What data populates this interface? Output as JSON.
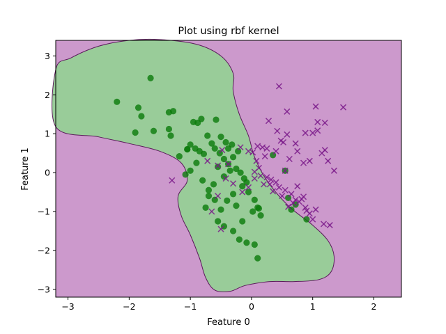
{
  "chart_data": {
    "type": "scatter",
    "title": "Plot using rbf kernel",
    "xlabel": "Feature 0",
    "ylabel": "Feature 1",
    "xlim": [
      -3.2,
      2.45
    ],
    "ylim": [
      -3.2,
      3.4
    ],
    "xticks": [
      -3,
      -2,
      -1,
      0,
      1,
      2
    ],
    "yticks": [
      -3,
      -2,
      -1,
      0,
      1,
      2,
      3
    ],
    "grid": false,
    "legend": "none",
    "background_region_color": "#cc99cc",
    "decision_region_color": "#99cc99",
    "decision_region_outline": [
      [
        -3.2,
        2.65
      ],
      [
        -2.95,
        2.95
      ],
      [
        -2.5,
        3.25
      ],
      [
        -2.0,
        3.4
      ],
      [
        -1.5,
        3.42
      ],
      [
        -0.9,
        3.3
      ],
      [
        -0.5,
        3.0
      ],
      [
        -0.3,
        2.55
      ],
      [
        -0.3,
        2.1
      ],
      [
        -0.2,
        1.5
      ],
      [
        -0.05,
        0.95
      ],
      [
        0.05,
        0.4
      ],
      [
        0.25,
        -0.2
      ],
      [
        0.6,
        -0.85
      ],
      [
        1.0,
        -1.35
      ],
      [
        1.25,
        -1.75
      ],
      [
        1.35,
        -2.15
      ],
      [
        1.3,
        -2.55
      ],
      [
        1.1,
        -2.75
      ],
      [
        0.7,
        -2.8
      ],
      [
        0.3,
        -2.8
      ],
      [
        -0.1,
        -2.9
      ],
      [
        -0.35,
        -3.05
      ],
      [
        -0.6,
        -3.02
      ],
      [
        -0.75,
        -2.7
      ],
      [
        -0.85,
        -2.2
      ],
      [
        -1.0,
        -1.6
      ],
      [
        -1.15,
        -1.1
      ],
      [
        -1.2,
        -0.6
      ],
      [
        -1.05,
        -0.2
      ],
      [
        -1.15,
        0.25
      ],
      [
        -1.5,
        0.55
      ],
      [
        -2.0,
        0.75
      ],
      [
        -2.5,
        0.92
      ],
      [
        -3.2,
        1.18
      ]
    ],
    "series": [
      {
        "marker": "circle",
        "color": "#0a7a0a",
        "points": [
          [
            -2.2,
            1.82
          ],
          [
            -1.85,
            1.67
          ],
          [
            -1.65,
            2.43
          ],
          [
            -1.8,
            1.45
          ],
          [
            -1.9,
            1.03
          ],
          [
            -1.6,
            1.07
          ],
          [
            -1.35,
            1.55
          ],
          [
            -1.28,
            1.58
          ],
          [
            -1.35,
            1.12
          ],
          [
            -1.32,
            0.95
          ],
          [
            -1.18,
            0.42
          ],
          [
            -1.05,
            0.6
          ],
          [
            -1.0,
            0.72
          ],
          [
            -0.92,
            0.62
          ],
          [
            -0.85,
            0.55
          ],
          [
            -0.78,
            0.48
          ],
          [
            -0.72,
            0.95
          ],
          [
            -0.65,
            0.75
          ],
          [
            -0.6,
            0.62
          ],
          [
            -0.52,
            0.5
          ],
          [
            -0.45,
            0.35
          ],
          [
            -0.38,
            0.22
          ],
          [
            -0.3,
            0.4
          ],
          [
            -0.25,
            0.1
          ],
          [
            -0.18,
            0.0
          ],
          [
            -0.12,
            -0.15
          ],
          [
            -0.08,
            -0.25
          ],
          [
            -0.45,
            -0.1
          ],
          [
            -0.55,
            0.15
          ],
          [
            -0.62,
            -0.3
          ],
          [
            -0.7,
            -0.45
          ],
          [
            -0.8,
            -0.2
          ],
          [
            -0.9,
            0.25
          ],
          [
            -1.0,
            0.05
          ],
          [
            -1.08,
            -0.05
          ],
          [
            -0.95,
            1.3
          ],
          [
            -0.88,
            1.28
          ],
          [
            -0.82,
            1.38
          ],
          [
            -0.58,
            1.36
          ],
          [
            -0.5,
            0.92
          ],
          [
            -0.42,
            0.78
          ],
          [
            -0.38,
            0.62
          ],
          [
            -0.32,
            0.72
          ],
          [
            -0.22,
            0.55
          ],
          [
            -0.15,
            -0.35
          ],
          [
            -0.05,
            -0.5
          ],
          [
            0.05,
            -0.7
          ],
          [
            0.1,
            -0.9
          ],
          [
            0.15,
            -1.1
          ],
          [
            -0.3,
            -0.55
          ],
          [
            -0.4,
            -0.72
          ],
          [
            -0.5,
            -0.95
          ],
          [
            -0.55,
            -1.25
          ],
          [
            -0.45,
            -1.38
          ],
          [
            -0.3,
            -1.5
          ],
          [
            -0.2,
            -1.72
          ],
          [
            -0.08,
            -1.8
          ],
          [
            0.05,
            -1.85
          ],
          [
            0.1,
            -2.2
          ],
          [
            -0.7,
            -0.6
          ],
          [
            -0.75,
            -0.9
          ],
          [
            -0.6,
            -0.7
          ],
          [
            -0.25,
            -0.85
          ],
          [
            -0.15,
            -1.25
          ],
          [
            0.02,
            -1.0
          ],
          [
            0.12,
            -0.92
          ],
          [
            0.35,
            0.45
          ],
          [
            0.55,
            0.05
          ],
          [
            0.6,
            -0.65
          ],
          [
            0.65,
            -0.95
          ],
          [
            0.72,
            -0.82
          ],
          [
            0.9,
            -1.2
          ],
          [
            -1.05,
            0.6
          ],
          [
            -0.35,
            0.05
          ]
        ]
      },
      {
        "marker": "x",
        "color": "#7a1a8a",
        "points": [
          [
            0.45,
            2.22
          ],
          [
            0.58,
            1.57
          ],
          [
            1.05,
            1.7
          ],
          [
            1.5,
            1.68
          ],
          [
            1.08,
            1.3
          ],
          [
            1.2,
            1.28
          ],
          [
            0.28,
            1.33
          ],
          [
            0.42,
            1.07
          ],
          [
            0.88,
            1.02
          ],
          [
            1.0,
            1.02
          ],
          [
            1.08,
            1.08
          ],
          [
            0.52,
            0.78
          ],
          [
            0.48,
            0.82
          ],
          [
            0.72,
            0.75
          ],
          [
            0.75,
            0.55
          ],
          [
            0.4,
            0.55
          ],
          [
            0.25,
            0.62
          ],
          [
            0.18,
            0.65
          ],
          [
            0.1,
            0.68
          ],
          [
            0.02,
            0.52
          ],
          [
            -0.05,
            0.55
          ],
          [
            -0.18,
            0.65
          ],
          [
            0.22,
            0.42
          ],
          [
            0.08,
            0.3
          ],
          [
            0.12,
            0.12
          ],
          [
            0.05,
            0.02
          ],
          [
            0.15,
            -0.08
          ],
          [
            0.25,
            -0.12
          ],
          [
            0.32,
            -0.18
          ],
          [
            0.4,
            -0.25
          ],
          [
            0.55,
            0.05
          ],
          [
            0.62,
            0.35
          ],
          [
            0.85,
            0.25
          ],
          [
            0.95,
            0.3
          ],
          [
            1.15,
            0.5
          ],
          [
            1.2,
            0.58
          ],
          [
            1.25,
            0.3
          ],
          [
            1.35,
            0.05
          ],
          [
            0.3,
            -0.3
          ],
          [
            0.45,
            -0.38
          ],
          [
            0.55,
            -0.45
          ],
          [
            0.65,
            -0.55
          ],
          [
            0.72,
            -0.7
          ],
          [
            0.78,
            -0.75
          ],
          [
            0.82,
            -0.68
          ],
          [
            0.88,
            -0.9
          ],
          [
            0.95,
            -1.05
          ],
          [
            1.05,
            -0.95
          ],
          [
            1.0,
            -1.2
          ],
          [
            1.18,
            -1.32
          ],
          [
            1.28,
            -1.35
          ],
          [
            0.75,
            -0.35
          ],
          [
            0.5,
            -0.6
          ],
          [
            0.35,
            -0.48
          ],
          [
            0.2,
            -0.3
          ],
          [
            0.05,
            -0.15
          ],
          [
            -0.05,
            -0.38
          ],
          [
            -0.15,
            -0.5
          ],
          [
            -0.3,
            -0.28
          ],
          [
            -0.42,
            -0.15
          ],
          [
            -0.55,
            -0.6
          ],
          [
            -0.65,
            -1.0
          ],
          [
            -0.48,
            0.58
          ],
          [
            -0.38,
            0.22
          ],
          [
            -0.55,
            0.18
          ],
          [
            -0.72,
            0.3
          ],
          [
            -1.3,
            -0.2
          ],
          [
            -0.5,
            -1.45
          ],
          [
            0.68,
            -0.78
          ],
          [
            0.85,
            -0.62
          ],
          [
            0.6,
            -0.88
          ],
          [
            0.9,
            -0.98
          ],
          [
            0.58,
            0.98
          ]
        ]
      }
    ]
  }
}
